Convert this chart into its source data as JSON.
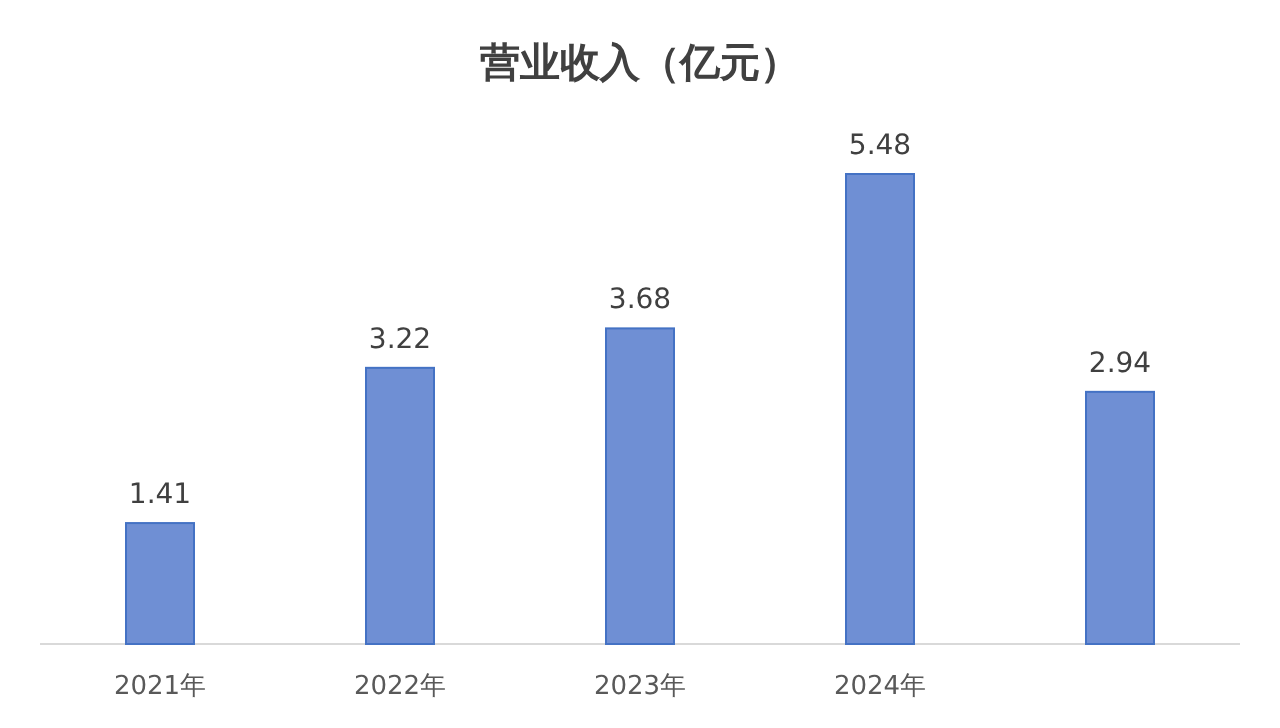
{
  "chart_data": {
    "type": "bar",
    "title": "营业收入（亿元）",
    "categories": [
      "2021年",
      "2022年",
      "2023年",
      "2024年",
      null
    ],
    "values": [
      1.41,
      3.22,
      3.68,
      5.48,
      2.94
    ],
    "color": "#6f8fd4",
    "data_labels": true
  }
}
